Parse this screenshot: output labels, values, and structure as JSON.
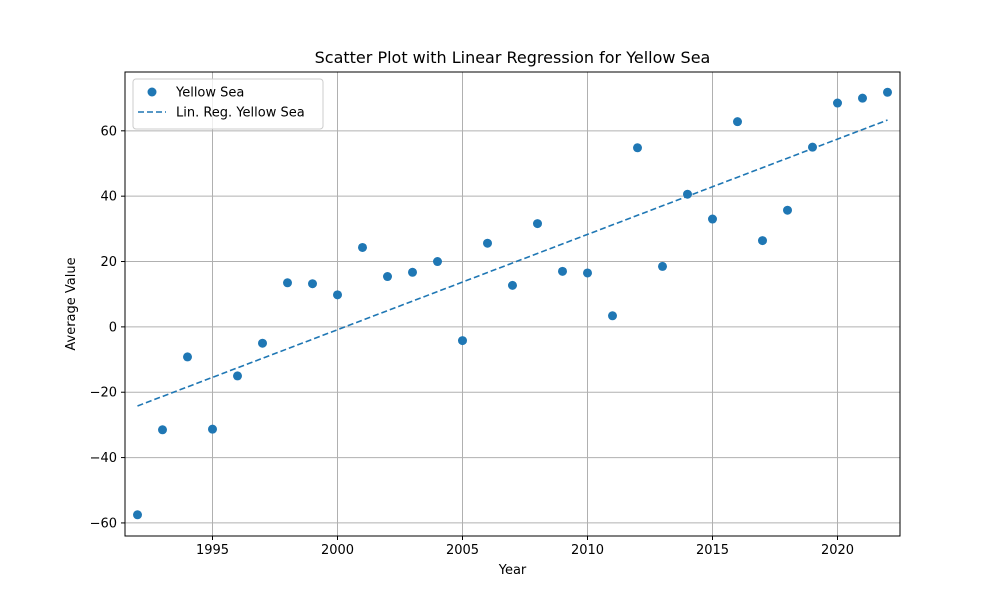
{
  "chart_data": {
    "type": "scatter",
    "title": "Scatter Plot with Linear Regression for Yellow Sea",
    "xlabel": "Year",
    "ylabel": "Average Value",
    "xlim": [
      1991.5,
      2022.5
    ],
    "ylim": [
      -64,
      78
    ],
    "xticks": [
      1995,
      2000,
      2005,
      2010,
      2015,
      2020
    ],
    "yticks": [
      -60,
      -40,
      -20,
      0,
      20,
      40,
      60
    ],
    "grid": true,
    "legend_position": "top-left",
    "series": [
      {
        "name": "Yellow Sea",
        "kind": "scatter",
        "color": "#1f77b4",
        "x": [
          1992,
          1993,
          1994,
          1995,
          1996,
          1997,
          1998,
          1999,
          2000,
          2001,
          2002,
          2003,
          2004,
          2005,
          2006,
          2007,
          2008,
          2009,
          2010,
          2011,
          2012,
          2013,
          2014,
          2015,
          2016,
          2017,
          2018,
          2019,
          2020,
          2021,
          2022
        ],
        "y": [
          -57.5,
          -31.5,
          -9.2,
          -31.3,
          -15.0,
          -5.0,
          13.5,
          13.2,
          9.8,
          24.3,
          15.4,
          16.7,
          20.0,
          -4.2,
          25.6,
          12.7,
          31.6,
          17.0,
          16.5,
          3.4,
          54.8,
          18.5,
          40.6,
          33.0,
          62.8,
          26.4,
          35.7,
          55.0,
          68.5,
          70.0,
          71.8
        ]
      },
      {
        "name": "Lin. Reg. Yellow Sea",
        "kind": "line",
        "style": "dashed",
        "color": "#1f77b4",
        "x": [
          1992,
          2022
        ],
        "y": [
          -24.2,
          63.3
        ]
      }
    ]
  }
}
